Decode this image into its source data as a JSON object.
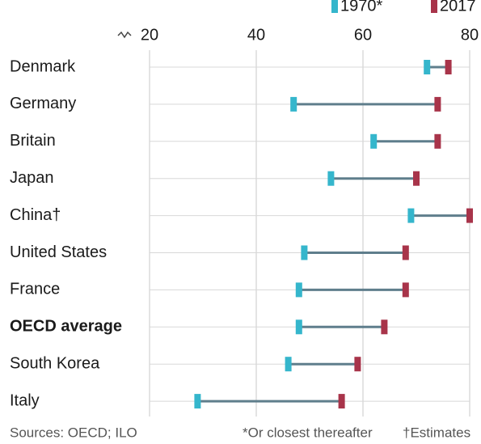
{
  "chart_data": {
    "type": "dumbbell",
    "categories": [
      "Denmark",
      "Germany",
      "Britain",
      "Japan",
      "China†",
      "United States",
      "France",
      "OECD average",
      "South Korea",
      "Italy"
    ],
    "series": [
      {
        "name": "1970*",
        "color": "#35b6cc",
        "values": [
          72,
          47,
          62,
          54,
          69,
          49,
          48,
          48,
          46,
          29
        ]
      },
      {
        "name": "2017",
        "color": "#a8344a",
        "values": [
          76,
          74,
          74,
          70,
          80,
          68,
          68,
          64,
          59,
          56
        ]
      }
    ],
    "xlim": [
      20,
      80
    ],
    "xticks": [
      20,
      40,
      60,
      80
    ],
    "grid": true,
    "sources": "Sources: OECD; ILO",
    "note": "*Or closest thereafter",
    "note2": "†Estimates"
  }
}
